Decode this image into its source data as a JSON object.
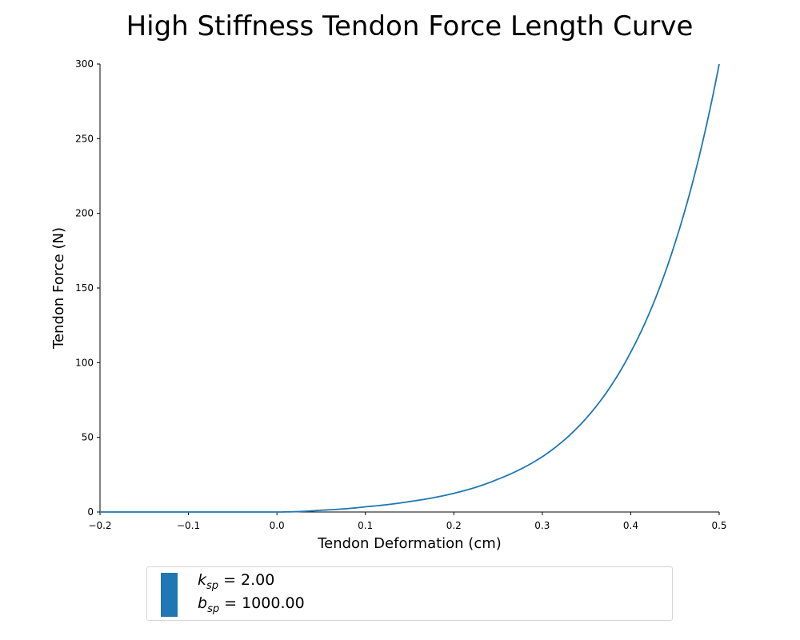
{
  "chart_data": {
    "type": "line",
    "title": "High Stiffness Tendon Force Length Curve",
    "xlabel": "Tendon Deformation (cm)",
    "ylabel": "Tendon Force (N)",
    "xlim": [
      -0.2,
      0.5
    ],
    "ylim": [
      0,
      300
    ],
    "xticks": [
      -0.2,
      -0.1,
      0.0,
      0.1,
      0.2,
      0.3,
      0.4,
      0.5
    ],
    "xtick_labels": [
      "−0.2",
      "−0.1",
      "0.0",
      "0.1",
      "0.2",
      "0.3",
      "0.4",
      "0.5"
    ],
    "yticks": [
      0,
      50,
      100,
      150,
      200,
      250,
      300
    ],
    "ytick_labels": [
      "0",
      "50",
      "100",
      "150",
      "200",
      "250",
      "300"
    ],
    "grid": false,
    "legend_position": "below",
    "series": [
      {
        "color": "#1f77b4",
        "x": [
          -0.2,
          0.0,
          0.05,
          0.1,
          0.15,
          0.2,
          0.25,
          0.3,
          0.35,
          0.4,
          0.45,
          0.5
        ],
        "y": [
          0,
          0,
          1.2,
          3.5,
          7,
          12.5,
          22,
          37,
          63,
          107,
          180,
          300
        ]
      }
    ],
    "legend": [
      {
        "symbol": "k",
        "subscript": "sp",
        "text": " = 2.00"
      },
      {
        "symbol": "b",
        "subscript": "sp",
        "text": " = 1000.00"
      }
    ],
    "legend_color": "#1f77b4"
  }
}
